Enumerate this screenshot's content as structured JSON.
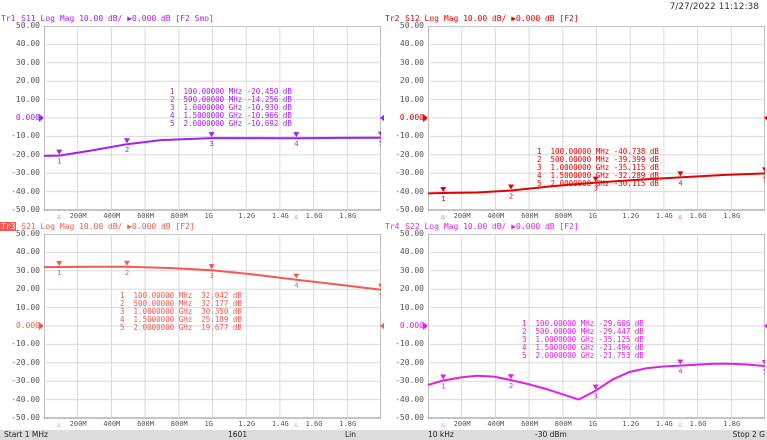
{
  "datetime": "7/27/2022 11:12:38",
  "y_ticks": [
    "50.00",
    "40.00",
    "30.00",
    "20.00",
    "10.00",
    "0.000",
    "-10.00",
    "-20.00",
    "-30.00",
    "-40.00",
    "-50.00"
  ],
  "x_ticks": [
    "200M",
    "400M",
    "600M",
    "800M",
    "1G",
    "1.2G",
    "1.4G",
    "1.6G",
    "1.8G"
  ],
  "x_ticks_s22": [
    "200M",
    "400M",
    "600M",
    "800M",
    "1G",
    "1.2G",
    "1.4G",
    "1.6G",
    "1.8G"
  ],
  "traces": [
    {
      "id": "tr1",
      "title_num": "Tr1",
      "title_rest": "S11 Log Mag 10.00 dB/ ▶0.000 dB [F2 Smo]",
      "color": "#a020f0",
      "marker_lines": [
        "1  100.00000 MHz -20.450 dB",
        "2  500.00000 MHz -14.256 dB",
        "3  1.0000000 GHz -10.930 dB",
        "4  1.5000000 GHz -10.966 dB",
        "5  2.0000000 GHz -10.692 dB"
      ]
    },
    {
      "id": "tr2",
      "title_num": "Tr2",
      "title_rest": "S12 Log Mag 10.00 dB/ ▶0.000 dB [F2]",
      "color": "#e60000",
      "marker_lines": [
        "1  100.00000 MHz -40.738 dB",
        "2  500.00000 MHz -39.399 dB",
        "3  1.0000000 GHz -35.115 dB",
        "4  1.5000000 GHz -32.289 dB",
        "5  2.0000000 GHz -30.115 dB"
      ]
    },
    {
      "id": "tr3",
      "title_num": "Tr3",
      "title_rest": "S21 Log Mag 10.00 dB/ ▶0.000 dB [F2]",
      "color": "#f05a50",
      "marker_lines": [
        "1  100.00000 MHz  32.042 dB",
        "2  500.00000 MHz  32.177 dB",
        "3  1.0000000 GHz  30.350 dB",
        "4  1.5000000 GHz  25.189 dB",
        "5  2.0000000 GHz  19.677 dB"
      ]
    },
    {
      "id": "tr4",
      "title_num": "Tr4",
      "title_rest": "S22 Log Mag 10.00 dB/ ▶0.000 dB [F2]",
      "color": "#e020e0",
      "marker_lines": [
        "1  100.00000 MHz -29.606 dB",
        "2  500.00000 MHz -29.447 dB",
        "3  1.0000000 GHz -35.125 dB",
        "4  1.5000000 GHz -21.496 dB",
        "5  2.0000000 GHz -21.753 dB"
      ]
    }
  ],
  "chart_data": [
    {
      "type": "line",
      "series": [
        {
          "name": "S11",
          "x": [
            0.01,
            0.1,
            0.3,
            0.5,
            0.7,
            1.0,
            1.25,
            1.5,
            1.75,
            2.0
          ],
          "values": [
            -20.6,
            -20.45,
            -17.5,
            -14.26,
            -12.0,
            -10.93,
            -10.9,
            -10.97,
            -10.8,
            -10.69
          ]
        }
      ],
      "xlim": [
        0.01,
        2.0
      ],
      "ylim": [
        -50,
        50
      ],
      "marker_x": [
        0.1,
        0.5,
        1.0,
        1.5,
        2.0
      ],
      "marker_y": [
        -20.45,
        -14.256,
        -10.93,
        -10.966,
        -10.692
      ]
    },
    {
      "type": "line",
      "series": [
        {
          "name": "S12",
          "x": [
            0.01,
            0.1,
            0.3,
            0.5,
            0.75,
            1.0,
            1.25,
            1.5,
            1.75,
            2.0
          ],
          "values": [
            -41.0,
            -40.74,
            -40.5,
            -39.4,
            -37.0,
            -35.12,
            -33.6,
            -32.29,
            -31.0,
            -30.12
          ]
        }
      ],
      "xlim": [
        0.01,
        2.0
      ],
      "ylim": [
        -50,
        50
      ],
      "marker_x": [
        0.1,
        0.5,
        1.0,
        1.5,
        2.0
      ],
      "marker_y": [
        -40.738,
        -39.399,
        -35.115,
        -32.289,
        -30.115
      ]
    },
    {
      "type": "line",
      "series": [
        {
          "name": "S21",
          "x": [
            0.01,
            0.1,
            0.3,
            0.5,
            0.75,
            1.0,
            1.25,
            1.5,
            1.75,
            2.0
          ],
          "values": [
            32.0,
            32.04,
            32.2,
            32.18,
            31.5,
            30.35,
            28.0,
            25.19,
            22.5,
            19.68
          ]
        }
      ],
      "xlim": [
        0.01,
        2.0
      ],
      "ylim": [
        -50,
        50
      ],
      "marker_x": [
        0.1,
        0.5,
        1.0,
        1.5,
        2.0
      ],
      "marker_y": [
        32.042,
        32.177,
        30.35,
        25.189,
        19.677
      ]
    },
    {
      "type": "line",
      "series": [
        {
          "name": "S22",
          "x": [
            0.01,
            0.1,
            0.2,
            0.3,
            0.4,
            0.5,
            0.6,
            0.7,
            0.8,
            0.9,
            1.0,
            1.1,
            1.2,
            1.3,
            1.4,
            1.5,
            1.6,
            1.7,
            1.8,
            1.9,
            2.0
          ],
          "values": [
            -32,
            -29.6,
            -28,
            -27,
            -27.5,
            -29.4,
            -31.5,
            -34,
            -37,
            -40,
            -35.1,
            -29,
            -25,
            -23,
            -22,
            -21.5,
            -21,
            -20.5,
            -20.5,
            -21,
            -21.75
          ]
        }
      ],
      "xlim": [
        0.01,
        2.0
      ],
      "ylim": [
        -50,
        50
      ],
      "marker_x": [
        0.1,
        0.5,
        1.0,
        1.5,
        2.0
      ],
      "marker_y": [
        -29.606,
        -29.447,
        -35.125,
        -21.496,
        -21.753
      ]
    }
  ],
  "status": {
    "start": "Start 1 MHz",
    "points": "1601",
    "scale": "Lin",
    "ifbw": "10 kHz",
    "power": "-30 dBm",
    "stop": "Stop 2 G"
  }
}
